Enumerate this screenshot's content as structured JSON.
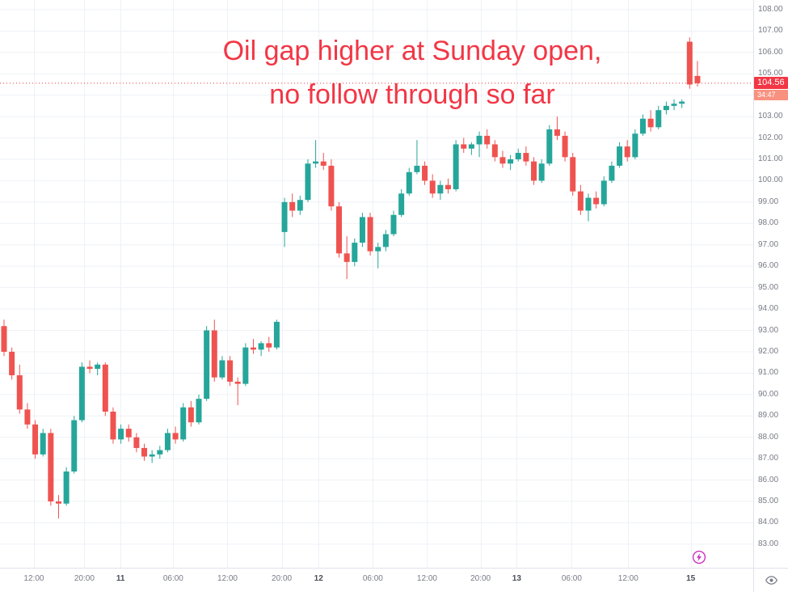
{
  "annotation": {
    "line1": "Oil gap higher at Sunday open,",
    "line2": "no follow through so far",
    "color": "#f23645"
  },
  "price_label": {
    "value": "104.56",
    "countdown": "34:47"
  },
  "icons": {
    "lightning": "lightning-bolt-circle",
    "eye": "eye"
  },
  "colors": {
    "up": "#26a69a",
    "down": "#ef5350",
    "grid": "#eef1f6",
    "axis_text": "#787b86",
    "axis_border": "#e0e3eb",
    "price_line": "#f23645",
    "price_badge": "#f23645",
    "countdown_badge": "#f8917f",
    "lightning": "#cf30bf"
  },
  "chart_data": {
    "type": "candlestick",
    "ylim": [
      81.9,
      108.45
    ],
    "last_price": 104.56,
    "price_ticks": [
      "108.00",
      "107.00",
      "106.00",
      "105.00",
      "104.00",
      "103.00",
      "102.00",
      "101.00",
      "100.00",
      "99.00",
      "98.00",
      "97.00",
      "96.00",
      "95.00",
      "94.00",
      "93.00",
      "92.00",
      "91.00",
      "90.00",
      "89.00",
      "88.00",
      "87.00",
      "86.00",
      "85.00",
      "84.00",
      "83.00"
    ],
    "time_ticks": [
      {
        "label": "12:00",
        "pos": 0.045,
        "day": false
      },
      {
        "label": "20:00",
        "pos": 0.112,
        "day": false
      },
      {
        "label": "11",
        "pos": 0.16,
        "day": true
      },
      {
        "label": "06:00",
        "pos": 0.23,
        "day": false
      },
      {
        "label": "12:00",
        "pos": 0.302,
        "day": false
      },
      {
        "label": "20:00",
        "pos": 0.374,
        "day": false
      },
      {
        "label": "12",
        "pos": 0.423,
        "day": true
      },
      {
        "label": "06:00",
        "pos": 0.495,
        "day": false
      },
      {
        "label": "12:00",
        "pos": 0.567,
        "day": false
      },
      {
        "label": "20:00",
        "pos": 0.638,
        "day": false
      },
      {
        "label": "13",
        "pos": 0.686,
        "day": true
      },
      {
        "label": "06:00",
        "pos": 0.759,
        "day": false
      },
      {
        "label": "12:00",
        "pos": 0.834,
        "day": false
      },
      {
        "label": "15",
        "pos": 0.917,
        "day": true
      }
    ],
    "candles": [
      [
        93.2,
        93.5,
        91.8,
        92.0
      ],
      [
        92.0,
        92.2,
        90.7,
        90.9
      ],
      [
        90.9,
        91.4,
        89.1,
        89.3
      ],
      [
        89.3,
        89.6,
        88.4,
        88.6
      ],
      [
        88.6,
        88.8,
        87.0,
        87.2
      ],
      [
        87.2,
        88.4,
        87.1,
        88.2
      ],
      [
        88.2,
        88.4,
        84.8,
        85.0
      ],
      [
        85.0,
        85.3,
        84.2,
        84.9
      ],
      [
        84.9,
        86.6,
        84.8,
        86.4
      ],
      [
        86.4,
        89.0,
        86.3,
        88.8
      ],
      [
        88.8,
        91.5,
        88.7,
        91.3
      ],
      [
        91.3,
        91.6,
        91.0,
        91.2
      ],
      [
        91.2,
        91.5,
        90.9,
        91.4
      ],
      [
        91.4,
        91.5,
        89.0,
        89.2
      ],
      [
        89.2,
        89.4,
        87.7,
        87.9
      ],
      [
        87.9,
        88.6,
        87.7,
        88.4
      ],
      [
        88.4,
        88.6,
        87.8,
        88.0
      ],
      [
        88.0,
        88.2,
        87.3,
        87.5
      ],
      [
        87.5,
        87.7,
        86.9,
        87.1
      ],
      [
        87.1,
        87.4,
        86.8,
        87.2
      ],
      [
        87.2,
        87.6,
        87.0,
        87.4
      ],
      [
        87.4,
        88.4,
        87.3,
        88.2
      ],
      [
        88.2,
        88.5,
        87.7,
        87.9
      ],
      [
        87.9,
        89.6,
        87.8,
        89.4
      ],
      [
        89.4,
        89.7,
        88.5,
        88.7
      ],
      [
        88.7,
        90.0,
        88.6,
        89.8
      ],
      [
        89.8,
        93.2,
        89.7,
        93.0
      ],
      [
        93.0,
        93.5,
        90.6,
        90.8
      ],
      [
        90.8,
        91.8,
        90.7,
        91.6
      ],
      [
        91.6,
        91.8,
        90.4,
        90.6
      ],
      [
        90.6,
        90.8,
        89.5,
        90.5
      ],
      [
        90.5,
        92.4,
        90.4,
        92.2
      ],
      [
        92.2,
        92.6,
        91.9,
        92.1
      ],
      [
        92.1,
        92.5,
        91.8,
        92.4
      ],
      [
        92.4,
        92.7,
        92.0,
        92.2
      ],
      [
        92.2,
        93.5,
        92.1,
        93.4
      ],
      [
        97.6,
        99.2,
        96.9,
        99.0
      ],
      [
        99.0,
        99.4,
        98.3,
        98.6
      ],
      [
        98.6,
        99.3,
        98.4,
        99.1
      ],
      [
        99.1,
        101.0,
        99.0,
        100.8
      ],
      [
        100.8,
        101.9,
        100.6,
        100.9
      ],
      [
        100.9,
        101.3,
        100.5,
        100.7
      ],
      [
        100.7,
        101.0,
        98.6,
        98.8
      ],
      [
        98.8,
        99.0,
        96.4,
        96.6
      ],
      [
        96.6,
        97.4,
        95.4,
        96.2
      ],
      [
        96.2,
        97.3,
        96.0,
        97.1
      ],
      [
        97.1,
        98.5,
        96.9,
        98.3
      ],
      [
        98.3,
        98.5,
        96.5,
        96.7
      ],
      [
        96.7,
        97.1,
        95.9,
        96.9
      ],
      [
        96.9,
        97.7,
        96.7,
        97.5
      ],
      [
        97.5,
        98.6,
        97.4,
        98.4
      ],
      [
        98.4,
        99.6,
        98.3,
        99.4
      ],
      [
        99.4,
        100.6,
        99.3,
        100.4
      ],
      [
        100.4,
        101.9,
        100.3,
        100.7
      ],
      [
        100.7,
        100.9,
        99.8,
        100.0
      ],
      [
        100.0,
        100.3,
        99.2,
        99.4
      ],
      [
        99.4,
        100.0,
        99.1,
        99.8
      ],
      [
        99.8,
        100.1,
        99.4,
        99.6
      ],
      [
        99.6,
        101.9,
        99.5,
        101.7
      ],
      [
        101.7,
        102.0,
        101.3,
        101.5
      ],
      [
        101.5,
        101.8,
        101.2,
        101.7
      ],
      [
        101.7,
        102.3,
        101.1,
        102.1
      ],
      [
        102.1,
        102.4,
        101.5,
        101.7
      ],
      [
        101.7,
        101.9,
        100.9,
        101.1
      ],
      [
        101.1,
        101.4,
        100.6,
        100.8
      ],
      [
        100.8,
        101.2,
        100.5,
        101.0
      ],
      [
        101.0,
        101.5,
        100.9,
        101.3
      ],
      [
        101.3,
        101.6,
        100.7,
        100.9
      ],
      [
        100.9,
        101.1,
        99.8,
        100.0
      ],
      [
        100.0,
        101.0,
        99.9,
        100.8
      ],
      [
        100.8,
        102.6,
        100.7,
        102.4
      ],
      [
        102.4,
        103.0,
        101.9,
        102.1
      ],
      [
        102.1,
        102.3,
        100.9,
        101.1
      ],
      [
        101.1,
        101.3,
        99.3,
        99.5
      ],
      [
        99.5,
        99.8,
        98.4,
        98.6
      ],
      [
        98.6,
        99.4,
        98.1,
        99.2
      ],
      [
        99.2,
        99.5,
        98.7,
        98.9
      ],
      [
        98.9,
        100.2,
        98.8,
        100.0
      ],
      [
        100.0,
        100.9,
        99.9,
        100.7
      ],
      [
        100.7,
        101.8,
        100.6,
        101.6
      ],
      [
        101.6,
        101.9,
        100.9,
        101.1
      ],
      [
        101.1,
        102.4,
        101.0,
        102.2
      ],
      [
        102.2,
        103.1,
        102.1,
        102.9
      ],
      [
        102.9,
        103.3,
        102.3,
        102.5
      ],
      [
        102.5,
        103.5,
        102.4,
        103.3
      ],
      [
        103.3,
        103.7,
        103.1,
        103.5
      ],
      [
        103.5,
        103.8,
        103.3,
        103.6
      ],
      [
        103.6,
        103.8,
        103.4,
        103.7
      ],
      [
        106.5,
        106.7,
        104.3,
        104.5
      ],
      [
        104.9,
        105.6,
        104.4,
        104.56
      ]
    ]
  }
}
